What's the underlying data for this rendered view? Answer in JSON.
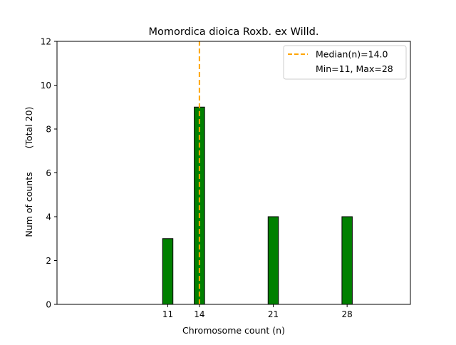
{
  "chart_data": {
    "type": "bar",
    "title": "Momordica dioica Roxb. ex Willd.",
    "xlabel": "Chromosome count (n)",
    "ylabel": "Num of counts",
    "ylabel_note": "(Total 20)",
    "bars": [
      {
        "x": 11,
        "value": 3
      },
      {
        "x": 14,
        "value": 9
      },
      {
        "x": 21,
        "value": 4
      },
      {
        "x": 28,
        "value": 4
      }
    ],
    "xticks": [
      11,
      14,
      21,
      28
    ],
    "yticks": [
      0,
      2,
      4,
      6,
      8,
      10,
      12
    ],
    "xlim": [
      0.5,
      34
    ],
    "ylim": [
      0,
      12
    ],
    "median": 14.0,
    "legend": {
      "position": "top-right",
      "median_label": "Median(n)=14.0",
      "range_label": "Min=11, Max=28"
    },
    "colors": {
      "bar_fill": "#008000",
      "bar_edge": "#000000",
      "median_line": "#FFA500"
    }
  }
}
